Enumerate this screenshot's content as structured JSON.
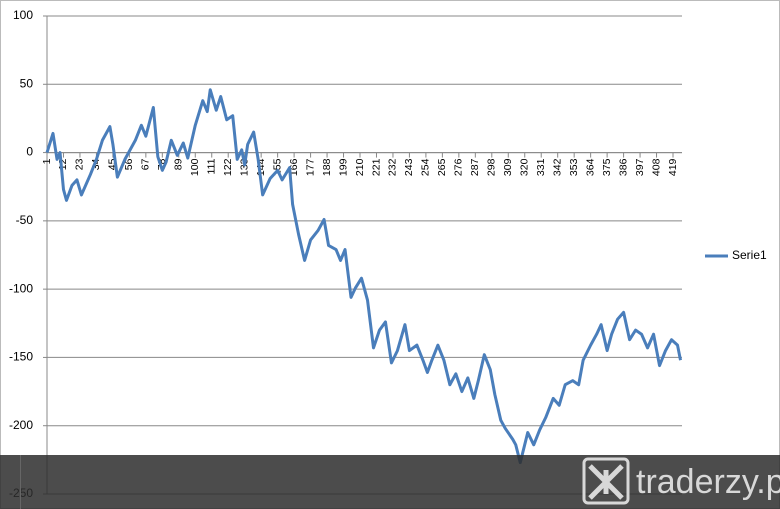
{
  "chart_data": {
    "type": "line",
    "x": [
      1,
      5,
      7.7,
      9.7,
      12,
      14,
      17.7,
      21,
      24,
      30,
      34,
      38,
      43,
      45,
      48,
      53,
      60,
      64,
      67,
      72,
      75,
      78,
      80.5,
      84,
      88,
      92,
      95,
      100,
      105,
      108,
      110,
      114,
      117,
      121,
      125,
      128,
      131,
      133,
      135,
      139,
      142,
      145,
      150,
      155,
      158,
      163,
      165,
      169,
      173,
      177,
      182,
      186,
      189,
      194,
      197,
      200,
      204,
      207,
      211,
      215,
      219,
      223,
      227,
      231,
      235,
      240,
      243,
      248,
      252,
      255,
      258,
      262,
      266,
      270,
      274,
      278,
      282,
      286,
      289,
      293,
      297,
      300,
      304,
      307,
      312,
      314,
      317,
      322,
      326,
      330,
      334,
      339,
      343,
      347,
      352,
      356,
      359,
      364,
      368,
      371,
      375,
      378,
      382,
      386,
      390,
      394,
      398,
      402,
      406,
      410,
      414,
      418,
      422,
      424
    ],
    "series": [
      {
        "name": "Serie1",
        "color": "#4a7ebb",
        "values": [
          0,
          14,
          -5,
          0,
          -27,
          -35,
          -24,
          -20,
          -31,
          -16,
          -5,
          9,
          19,
          6,
          -18,
          -5,
          9,
          20,
          12,
          33,
          -3,
          -13,
          -7,
          9,
          -2,
          7,
          -4,
          20,
          38,
          30,
          46,
          31,
          41,
          24,
          27,
          -5,
          2,
          -9,
          6,
          15,
          -5,
          -31,
          -19,
          -13,
          -20,
          -11,
          -38,
          -60,
          -79,
          -64,
          -57,
          -49,
          -68,
          -71,
          -79,
          -71,
          -106,
          -99,
          -92,
          -108,
          -143,
          -130,
          -124,
          -154,
          -145,
          -126,
          -145,
          -141,
          -152,
          -161,
          -152,
          -141,
          -152,
          -170,
          -162,
          -175,
          -165,
          -180,
          -167,
          -148,
          -159,
          -177,
          -196,
          -202,
          -210,
          -214,
          -227,
          -205,
          -214,
          -203,
          -194,
          -180,
          -185,
          -170,
          -167,
          -170,
          -152,
          -141,
          -133,
          -126,
          -145,
          -133,
          -122,
          -117,
          -137,
          -130,
          -133,
          -143,
          -133,
          -156,
          -145,
          -137,
          -141,
          -152
        ]
      }
    ],
    "xlim": [
      1,
      425
    ],
    "xticks": [
      1,
      12,
      23,
      34,
      45,
      56,
      67,
      78,
      89,
      100,
      111,
      122,
      133,
      144,
      155,
      166,
      177,
      188,
      199,
      210,
      221,
      232,
      243,
      254,
      265,
      276,
      287,
      298,
      309,
      320,
      331,
      342,
      353,
      364,
      375,
      386,
      397,
      408,
      419
    ],
    "ylim": [
      -250,
      100
    ],
    "yticks": [
      100,
      50,
      0,
      -50,
      -100,
      -150,
      -200,
      -250
    ],
    "grid": true,
    "legend": "right"
  },
  "watermark": "traderzy.pl"
}
